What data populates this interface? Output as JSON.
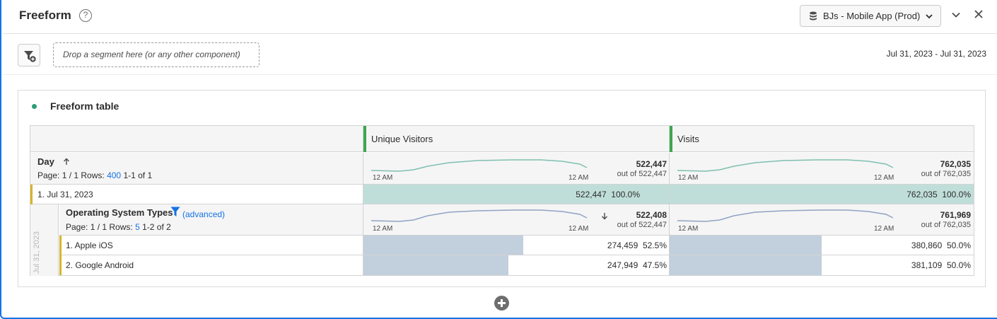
{
  "header": {
    "title": "Freeform",
    "help_icon": "help-icon",
    "report_suite": "BJs - Mobile App (Prod)"
  },
  "segment_bar": {
    "drop_placeholder": "Drop a segment here (or any other component)",
    "date_range": "Jul 31, 2023 - Jul 31, 2023"
  },
  "viz": {
    "title": "Freeform table",
    "columns": [
      "Unique Visitors",
      "Visits"
    ],
    "day_dimension": {
      "name": "Day",
      "sort_icon": "arrow-up-icon",
      "page_text": "Page: 1 / 1 Rows:",
      "rows_value": "400",
      "range_text": "1-1 of 1",
      "tick_start": "12 AM",
      "tick_end": "12 AM",
      "totals": [
        {
          "total": "522,447",
          "out_of": "out of 522,447"
        },
        {
          "total": "762,035",
          "out_of": "out of 762,035"
        }
      ],
      "row": {
        "label": "1.  Jul 31, 2023",
        "values": [
          {
            "value": "522,447",
            "pct": "100.0%",
            "fraction": 1.0
          },
          {
            "value": "762,035",
            "pct": "100.0%",
            "fraction": 1.0
          }
        ]
      }
    },
    "os_dimension": {
      "name": "Operating System Types",
      "advanced": "(advanced)",
      "page_text": "Page: 1 / 1 Rows:",
      "rows_value": "5",
      "range_text": "1-2 of 2",
      "side_label": "Jul 31, 2023",
      "tick_start": "12 AM",
      "tick_end": "12 AM",
      "totals": [
        {
          "total": "522,408",
          "out_of": "out of 522,447"
        },
        {
          "total": "761,969",
          "out_of": "out of 762,035"
        }
      ],
      "rows": [
        {
          "label": "1.  Apple iOS",
          "values": [
            {
              "value": "274,459",
              "pct": "52.5%",
              "fraction": 0.525
            },
            {
              "value": "380,860",
              "pct": "50.0%",
              "fraction": 0.5
            }
          ]
        },
        {
          "label": "2.  Google Android",
          "values": [
            {
              "value": "247,949",
              "pct": "47.5%",
              "fraction": 0.475
            },
            {
              "value": "381,109",
              "pct": "50.0%",
              "fraction": 0.5
            }
          ]
        }
      ]
    }
  },
  "colors": {
    "accent": "#1473e6",
    "green_bar": "#c0ded9",
    "blue_bar": "#c2cfdd",
    "spark_green": "#7fbfb0",
    "spark_blue": "#8fa3c4",
    "row_marker": "#d8b42a",
    "grip": "#3da74e"
  }
}
